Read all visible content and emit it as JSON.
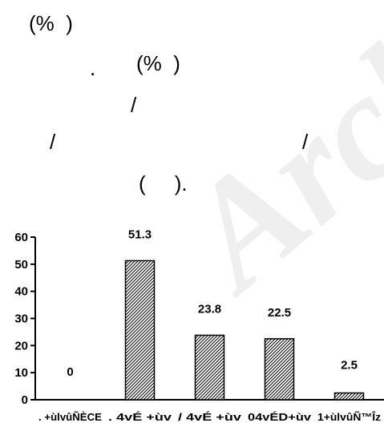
{
  "text_fragments": [
    {
      "id": "f1",
      "text": "(%  )"
    },
    {
      "id": "f2",
      "text": "."
    },
    {
      "id": "f3",
      "text": "(%  )"
    },
    {
      "id": "f4",
      "text": "/"
    },
    {
      "id": "f5",
      "text": "/"
    },
    {
      "id": "f6",
      "text": "/"
    },
    {
      "id": "f7",
      "text": "(     )."
    }
  ],
  "watermark": "Archive",
  "chart_data": {
    "type": "bar",
    "categories": [
      ". +ùlvûÑÈCE",
      ". 4vÉ +ùv",
      "/ 4vÉ +ùv",
      "04vÉD+ùv",
      "1+ùlvûÑ™Îz"
    ],
    "values": [
      0,
      51.3,
      23.8,
      22.5,
      2.5
    ],
    "data_labels": [
      "0",
      "51.3",
      "23.8",
      "22.5",
      "2.5"
    ],
    "yticks": [
      "0",
      "10",
      "20",
      "30",
      "40",
      "50",
      "60"
    ],
    "ylim": [
      0,
      60
    ],
    "bar_fill": "hatched",
    "grid": false,
    "title": "",
    "xlabel": "",
    "ylabel": ""
  }
}
